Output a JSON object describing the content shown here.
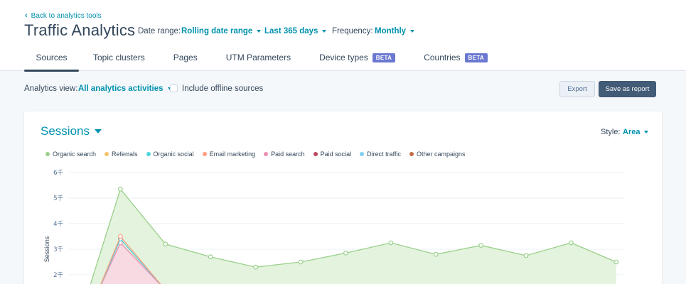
{
  "header": {
    "back_label": "Back to analytics tools",
    "title": "Traffic Analytics",
    "date_range_label": "Date range:",
    "date_range_value": "Rolling date range",
    "period_value": "Last 365 days",
    "frequency_label": "Frequency:",
    "frequency_value": "Monthly"
  },
  "tabs": [
    {
      "label": "Sources",
      "active": true
    },
    {
      "label": "Topic clusters"
    },
    {
      "label": "Pages"
    },
    {
      "label": "UTM Parameters"
    },
    {
      "label": "Device types",
      "badge": "BETA"
    },
    {
      "label": "Countries",
      "badge": "BETA"
    }
  ],
  "toolbar": {
    "view_label": "Analytics view:",
    "view_value": "All analytics activities",
    "offline_label": "Include offline sources",
    "offline_checked": false,
    "export_label": "Export",
    "save_label": "Save as report"
  },
  "card": {
    "metric": "Sessions",
    "style_label": "Style:",
    "style_value": "Area"
  },
  "colors": {
    "accent": "#0091ae",
    "text": "#33475b",
    "primary_button": "#425b76",
    "badge": "#6a78d1"
  },
  "chart_data": {
    "type": "area",
    "ylabel": "Sessions",
    "y_ticks": [
      "2千",
      "3千",
      "4千",
      "5千",
      "6千"
    ],
    "ylim": [
      0,
      6000
    ],
    "grid": true,
    "legend_placement": "top-left",
    "series": [
      {
        "name": "Organic search",
        "color": "#99d08a",
        "fill": "#e0f2d9",
        "values": [
          null,
          5350,
          3200,
          2700,
          2300,
          2500,
          2850,
          3250,
          2800,
          3150,
          2750,
          3250,
          2500
        ]
      },
      {
        "name": "Referrals",
        "color": "#f5c26b"
      },
      {
        "name": "Organic social",
        "color": "#51d3d9",
        "values": [
          null,
          3400,
          1400
        ]
      },
      {
        "name": "Email marketing",
        "color": "#ff9e80",
        "values": [
          null,
          3500,
          1400
        ]
      },
      {
        "name": "Paid search",
        "color": "#ea90b1",
        "fill": "#f9d7e3",
        "values": [
          null,
          3250,
          1400
        ]
      },
      {
        "name": "Paid social",
        "color": "#bc4960"
      },
      {
        "name": "Direct traffic",
        "color": "#7fd1ee"
      },
      {
        "name": "Other campaigns",
        "color": "#c46a45"
      }
    ]
  }
}
